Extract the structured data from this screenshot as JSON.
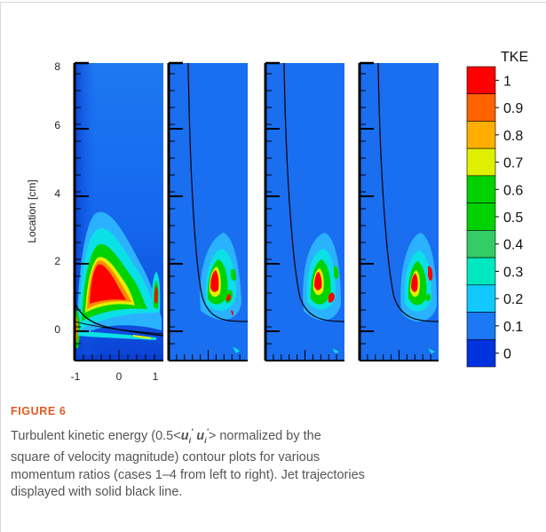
{
  "figure": {
    "label": "FIGURE 6",
    "caption": {
      "line1_pre": "Turbulent kinetic energy (0.5<",
      "u_sym": "u",
      "u_sub": "i",
      "prime": "′",
      "line1_post": "> normalized by the",
      "line2": "square of velocity magnitude) contour plots for various",
      "line3": "momentum ratios (cases 1–4 from left to right). Jet trajectories",
      "line4": "displayed with solid black line."
    }
  },
  "chart_data": {
    "type": "heatmap",
    "ylabel": "Location [cm]",
    "y_ticks": [
      "8",
      "6",
      "4",
      "2",
      "0"
    ],
    "y_values": [
      8,
      6,
      4,
      2,
      0
    ],
    "x_ticks": [
      "-1",
      "0",
      "1"
    ],
    "x_values": [
      -1,
      0,
      1
    ],
    "xlim": [
      -1,
      1
    ],
    "ylim": [
      -1,
      8.2
    ],
    "panels": 4,
    "colorbar": {
      "title": "TKE",
      "labels": [
        "1",
        "0.9",
        "0.8",
        "0.7",
        "0.6",
        "0.5",
        "0.4",
        "0.3",
        "0.2",
        "0.1",
        "0"
      ],
      "colors": [
        "#ff0000",
        "#ff6200",
        "#ffae00",
        "#e0ef00",
        "#00d200",
        "#00d200",
        "#33cc66",
        "#00e8c0",
        "#11c8ff",
        "#1c78f5",
        "#0033dd"
      ]
    },
    "colors": {
      "background": "#1a6ef0",
      "deep": "#0a3fd0",
      "level_low": "#2ab2ff",
      "level_cyan": "#0be0e6",
      "level_green": "#00d200",
      "level_yellow": "#e4ee00",
      "level_orange": "#ff8a00",
      "level_red": "#ff0000",
      "trajectory": "#000000"
    }
  }
}
